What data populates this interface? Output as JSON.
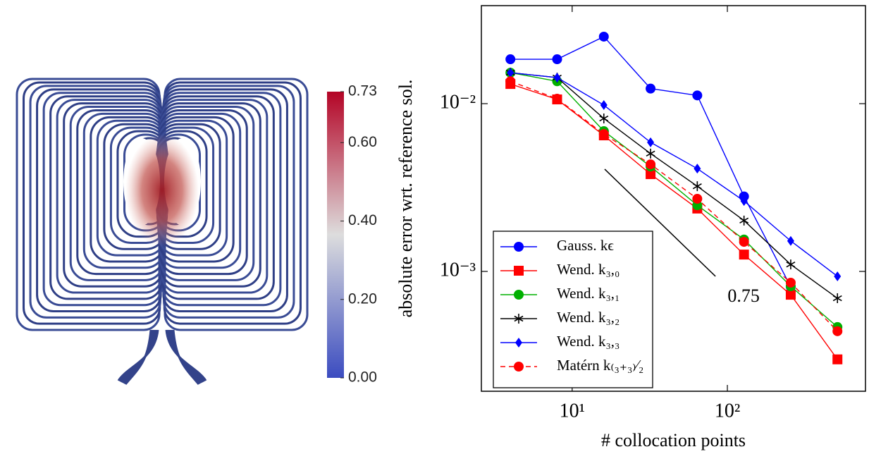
{
  "chart_data": [
    {
      "type": "colorbar",
      "clim": [
        0,
        0.73
      ],
      "cticks": [
        {
          "value": 0,
          "label": "0.00"
        },
        {
          "value": 0.2,
          "label": "0.20"
        },
        {
          "value": 0.4,
          "label": "0.40"
        },
        {
          "value": 0.6,
          "label": "0.60"
        },
        {
          "value": 0.73,
          "label": "0.73"
        }
      ],
      "colors": [
        "#3b4cc0",
        "#dddddd",
        "#b40426"
      ]
    },
    {
      "type": "line",
      "xlog": true,
      "ylog": true,
      "xlabel": "# collocation points",
      "ylabel": "absolute error wrt. reference sol.",
      "x": [
        4,
        8,
        16,
        32,
        64,
        128,
        256,
        512
      ],
      "xlim": [
        2.6,
        776
      ],
      "ylim": [
        0.000193,
        0.0384
      ],
      "xticks": [
        {
          "value": 10,
          "label": "10¹"
        },
        {
          "value": 100,
          "label": "10²"
        }
      ],
      "yticks": [
        {
          "value": 0.001,
          "label": "10⁻³"
        },
        {
          "value": 0.01,
          "label": "10⁻²"
        }
      ],
      "legend": "lower left",
      "series": [
        {
          "name": "Gauss. kϵ",
          "color": "#0000ff",
          "marker": "circle",
          "dashed": false,
          "values": [
            0.0184,
            0.0184,
            0.0251,
            0.0123,
            0.0112,
            0.0028,
            0.00081,
            null
          ]
        },
        {
          "name": "Wend. k₃,₀",
          "color": "#ff0000",
          "marker": "square",
          "dashed": false,
          "values": [
            0.0131,
            0.0106,
            0.00647,
            0.0038,
            0.00237,
            0.00126,
            0.000726,
            0.000299
          ]
        },
        {
          "name": "Wend. k₃,₁",
          "color": "#00b000",
          "marker": "circle",
          "dashed": false,
          "values": [
            0.0153,
            0.0136,
            0.00686,
            0.00422,
            0.00248,
            0.00155,
            0.000816,
            0.000466
          ]
        },
        {
          "name": "Wend. k₃,₂",
          "color": "#000000",
          "marker": "star",
          "dashed": false,
          "values": [
            0.0153,
            0.0143,
            0.00816,
            0.00504,
            0.00322,
            0.00201,
            0.0011,
            0.000692
          ]
        },
        {
          "name": "Wend. k₃,₃",
          "color": "#0000ff",
          "marker": "diamond",
          "dashed": false,
          "values": [
            0.0153,
            0.0143,
            0.00981,
            0.00588,
            0.0041,
            0.00263,
            0.00152,
            0.000935
          ]
        },
        {
          "name": "Matérn k₍₃₊₃₎⁄₂",
          "color": "#ff0000",
          "marker": "circle",
          "dashed": true,
          "values": [
            0.0136,
            0.0107,
            0.00659,
            0.00435,
            0.00271,
            0.0015,
            0.000857,
            0.00044
          ]
        }
      ],
      "slope_line": {
        "label": "0.75",
        "x": [
          16.2,
          83.8
        ],
        "y": [
          0.00407,
          0.000935
        ]
      }
    }
  ]
}
